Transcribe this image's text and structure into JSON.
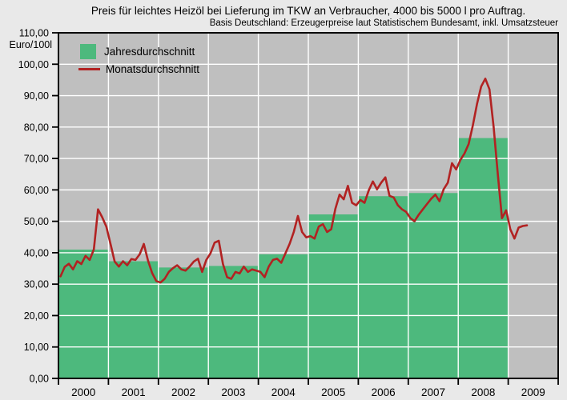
{
  "title": "Preis für leichtes Heizöl bei Lieferung im TKW an Verbraucher, 4000 bis 5000 l pro Auftrag.",
  "subtitle": "Basis Deutschland: Erzeugerpreise laut Statistischem Bundesamt, inkl. Umsatzsteuer",
  "colors": {
    "page_background": "#e9e9e9",
    "plot_background": "#bfbfbf",
    "grid": "#ffffff",
    "frame": "#000000",
    "bar_green": "#4db97d",
    "line_red": "#b22222"
  },
  "chart_data": {
    "type": "bar+line",
    "title": "Preis für leichtes Heizöl bei Lieferung im TKW an Verbraucher, 4000 bis 5000 l pro Auftrag.",
    "subtitle": "Basis Deutschland: Erzeugerpreise laut Statistischem Bundesamt, inkl. Umsatzsteuer",
    "ylabel": "Euro/100l",
    "ylim": [
      0,
      110
    ],
    "ytick_step": 10,
    "grid": true,
    "legend_position": "top-left",
    "categories": [
      "2000",
      "2001",
      "2002",
      "2003",
      "2004",
      "2005",
      "2006",
      "2007",
      "2008",
      "2009"
    ],
    "y_tick_labels": [
      "0,00",
      "10,00",
      "20,00",
      "30,00",
      "40,00",
      "50,00",
      "60,00",
      "70,00",
      "80,00",
      "90,00",
      "100,00",
      "110,00"
    ],
    "series": [
      {
        "name": "Jahresdurchschnitt",
        "type": "bar",
        "color": "#4db97d",
        "values": [
          41.0,
          37.3,
          35.3,
          35.8,
          39.5,
          52.2,
          58.0,
          59.0,
          76.5,
          null
        ]
      },
      {
        "name": "Monatsdurchschnitt",
        "type": "line",
        "color": "#b22222",
        "first_month": "2000-01",
        "values_by_year": {
          "2000": [
            32.5,
            35.5,
            36.5,
            34.7,
            37.3,
            36.4,
            39.0,
            37.7,
            41.1,
            53.8,
            51.3,
            48.3
          ],
          "2001": [
            42.8,
            37.2,
            35.6,
            37.3,
            36.0,
            38.0,
            37.7,
            39.5,
            42.8,
            37.5,
            33.5,
            31.0
          ],
          "2002": [
            30.5,
            31.7,
            33.9,
            35.1,
            36.0,
            34.7,
            34.3,
            35.6,
            37.2,
            38.1,
            33.9,
            37.7
          ],
          "2003": [
            39.8,
            43.2,
            43.8,
            36.4,
            32.2,
            31.7,
            33.9,
            33.4,
            35.6,
            33.9,
            34.7,
            34.3
          ],
          "2004": [
            33.9,
            32.2,
            35.6,
            37.7,
            38.1,
            36.8,
            39.8,
            42.8,
            46.6,
            51.7,
            46.6,
            44.9
          ],
          "2005": [
            45.3,
            44.5,
            48.3,
            49.1,
            46.6,
            47.5,
            54.0,
            58.5,
            57.0,
            61.3,
            55.9,
            55.1
          ],
          "2006": [
            56.8,
            55.9,
            59.8,
            62.7,
            60.2,
            62.3,
            64.0,
            58.1,
            57.6,
            55.1,
            53.8,
            53.0
          ],
          "2007": [
            51.0,
            50.0,
            52.1,
            53.8,
            55.5,
            57.2,
            58.5,
            56.4,
            60.2,
            62.3,
            68.5,
            66.5
          ],
          "2008": [
            69.5,
            71.6,
            74.6,
            80.5,
            87.3,
            92.9,
            95.4,
            92.0,
            80.0,
            65.0,
            51.0,
            53.5
          ],
          "2009": [
            47.5,
            44.5,
            48.0,
            48.5,
            48.7
          ]
        }
      }
    ]
  }
}
